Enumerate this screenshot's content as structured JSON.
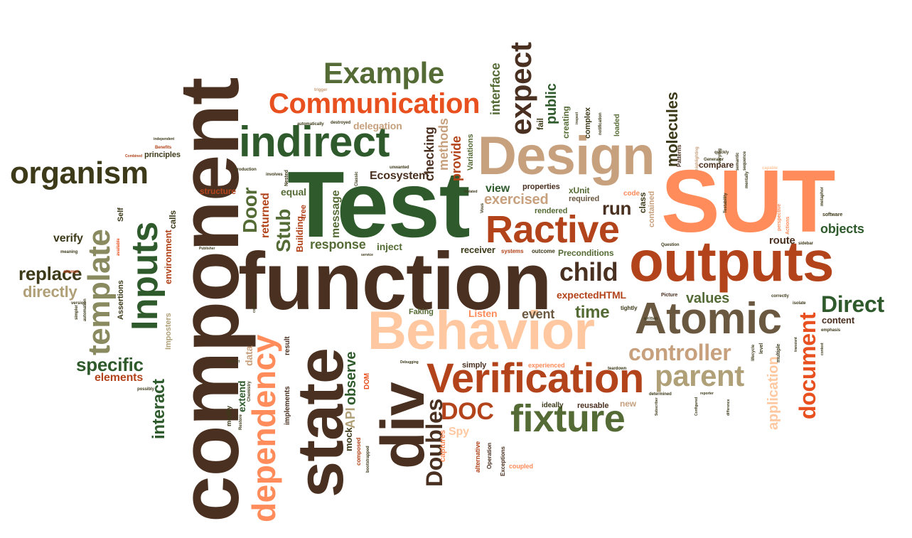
{
  "colors": {
    "dark_brown": "#4a3020",
    "dark_green": "#2e5a2c",
    "olive": "#556b35",
    "salmon": "#ff8c5a",
    "orange_red": "#e8511f",
    "rust": "#b2431a",
    "tan": "#c7a07e",
    "peach": "#ffc8a0",
    "khaki": "#b0a078",
    "olive_green": "#4c7a3a"
  },
  "words": {
    "component": "component",
    "test": "Test",
    "function": "function",
    "sut": "SUT",
    "design": "Design",
    "outputs": "outputs",
    "behavior": "Behavior",
    "state": "state",
    "div": "div",
    "atomic": "Atomic",
    "verification": "Verification",
    "ractive": "Ractive",
    "indirect": "indirect",
    "organism": "organism",
    "communication": "Communication",
    "example": "Example",
    "fixture": "fixture",
    "inputs": "Inputs",
    "template": "template",
    "dependency": "dependency",
    "expect": "expect",
    "controller": "controller",
    "parent": "parent",
    "document": "document",
    "direct": "Direct",
    "child": "child",
    "doc": "DOC",
    "doubles": "Doubles",
    "replace": "replace",
    "directly": "directly",
    "specific": "specific",
    "elements": "elements",
    "interact": "interact",
    "verify": "verify",
    "door": "Door",
    "stub": "Stub",
    "response": "response",
    "ecosystem": "Ecosystem",
    "exercised": "exercised",
    "run": "run",
    "time": "time",
    "event": "event",
    "values": "values",
    "objects": "objects",
    "route": "route",
    "content": "content",
    "molecules": "molecules",
    "application": "application",
    "public": "public",
    "interface": "interface",
    "methods": "methods",
    "checking": "checking",
    "provide": "provide",
    "delegation": "delegation",
    "message": "message",
    "returned": "returned",
    "equal": "equal",
    "building": "Building",
    "tree": "tree",
    "inject": "inject",
    "observe": "observe",
    "api": "API",
    "data": "data",
    "extend": "extend",
    "mock": "mock",
    "captures": "captures",
    "spy": "Spy",
    "new": "new",
    "view": "view",
    "properties": "properties",
    "xunit": "xUnit",
    "required": "required",
    "rendered": "rendered",
    "preconditions": "Preconditions",
    "receiver": "receiver",
    "expectedhtml": "expectedHTML",
    "listen": "Listen",
    "faking": "Faking",
    "simply": "simply",
    "experienced": "experienced",
    "reusable": "reusable",
    "ideally": "ideally",
    "structure": "structure",
    "principles": "principles",
    "environment": "environment",
    "calls": "calls",
    "imposters": "Imposters",
    "assertions": "Assertions",
    "self": "Self",
    "compare": "compare",
    "patterns": "Patterns",
    "fail": "fail",
    "creating": "creating",
    "complex": "complex",
    "loaded": "loaded",
    "class": "class",
    "contained": "contained",
    "code": "code",
    "tightly": "tightly",
    "variations": "Variations",
    "systems": "systems",
    "outcome": "outcome",
    "implements": "implements",
    "result": "result",
    "dom": "DOM",
    "alternative": "alternative",
    "operation": "Operation",
    "exceptions": "Exceptions",
    "coupled": "coupled",
    "composed": "composed",
    "modify": "modify",
    "automatically": "automatically",
    "destroyed": "destroyed",
    "nested": "Nested",
    "unwanted": "unwanted",
    "classic": "Classic",
    "sidebar": "sidebar",
    "question": "Question",
    "picture": "Picture",
    "software": "software",
    "correctly": "correctly",
    "isolate": "isolate",
    "emphasis": "emphasis",
    "multiple": "multiple",
    "level": "level",
    "lifecycle": "lifecycle",
    "written": "written",
    "determined": "determined",
    "teardown": "teardown",
    "meaning": "meaning",
    "attempt": "attempt",
    "available": "available",
    "version": "version",
    "automation": "automation",
    "simpler": "simpler",
    "possibly": "possibly",
    "production": "production",
    "involves": "involves",
    "generator": "Generator",
    "testability": "Testability",
    "actions": "Actions",
    "perspective": "perspective",
    "quickly": "quickly",
    "metaphor": "metaphor",
    "semantic": "semantic",
    "sequence": "sequence",
    "capable": "capable",
    "mentally": "mentally",
    "varying": "varying",
    "benefits": "Benefits",
    "independent": "independent",
    "combined": "Combined",
    "trigger": "trigger",
    "inspect": "inspect",
    "notification": "notification",
    "highlighting": "highlighting",
    "debugging": "Debugging",
    "chemistry": "Chemistry",
    "abstract": "abstract",
    "collections": "collections",
    "restore": "Restore",
    "bootstrapped": "bootstrapped",
    "service": "service",
    "publisher": "Publisher",
    "context": "context",
    "transient": "transient",
    "vous": "Vous",
    "isolated": "isolated",
    "reporter": "reporter",
    "subscriber": "Subscriber",
    "configured": "Configured",
    "difference": "difference"
  }
}
